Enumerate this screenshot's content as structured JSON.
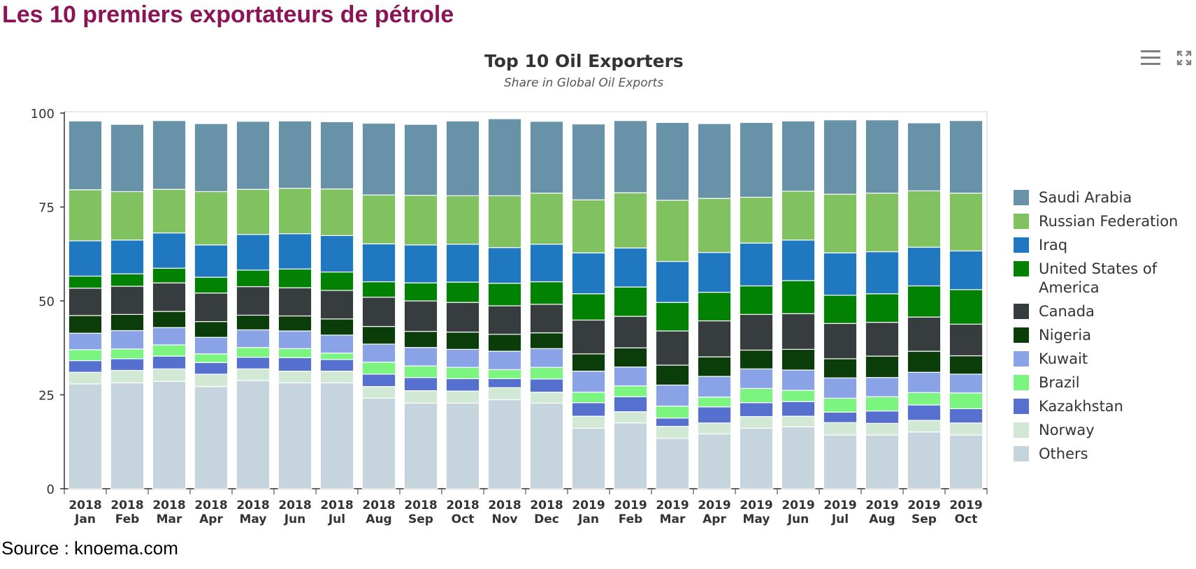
{
  "page_heading": "Les 10 premiers exportateurs de pétrole",
  "source_text": "Source : knoema.com",
  "icons": {
    "menu": "hamburger-menu-icon",
    "expand": "fullscreen-expand-icon"
  },
  "chart_data": {
    "type": "bar",
    "stacked": true,
    "title": "Top 10 Oil Exporters",
    "subtitle": "Share in Global Oil Exports",
    "xlabel": "",
    "ylabel": "",
    "ylim": [
      0,
      100
    ],
    "yticks": [
      0,
      25,
      50,
      75,
      100
    ],
    "grid": false,
    "legend_position": "right",
    "categories": [
      "2018 Jan",
      "2018 Feb",
      "2018 Mar",
      "2018 Apr",
      "2018 May",
      "2018 Jun",
      "2018 Jul",
      "2018 Aug",
      "2018 Sep",
      "2018 Oct",
      "2018 Nov",
      "2018 Dec",
      "2019 Jan",
      "2019 Feb",
      "2019 Mar",
      "2019 Apr",
      "2019 May",
      "2019 Jun",
      "2019 Jul",
      "2019 Aug",
      "2019 Sep",
      "2019 Oct"
    ],
    "series": [
      {
        "name": "Others",
        "color": "#c6d4de",
        "values": [
          27.9,
          28.2,
          28.6,
          27.2,
          28.8,
          28.2,
          28.2,
          24.1,
          22.8,
          22.8,
          23.7,
          22.8,
          16.1,
          17.5,
          13.4,
          14.6,
          16.1,
          16.5,
          14.3,
          14.3,
          15.1,
          14.3
        ]
      },
      {
        "name": "Norway",
        "color": "#d0e8d4",
        "values": [
          3.1,
          3.3,
          3.3,
          3.3,
          3.1,
          3.1,
          3.1,
          3.1,
          3.3,
          3.2,
          3.2,
          2.9,
          3.2,
          3.0,
          3.2,
          2.9,
          3.1,
          2.8,
          3.3,
          3.1,
          3.1,
          3.2
        ]
      },
      {
        "name": "Kazakhstan",
        "color": "#5670cf",
        "values": [
          3.1,
          3.1,
          3.4,
          3.1,
          3.1,
          3.6,
          3.1,
          3.3,
          3.5,
          3.3,
          2.4,
          3.5,
          3.6,
          4.0,
          2.2,
          4.3,
          3.7,
          3.9,
          2.8,
          3.3,
          4.1,
          3.8
        ]
      },
      {
        "name": "Brazil",
        "color": "#7cf480",
        "values": [
          2.9,
          2.6,
          3.0,
          2.3,
          2.6,
          2.4,
          1.7,
          3.2,
          3.1,
          3.0,
          2.4,
          3.1,
          2.8,
          2.9,
          3.2,
          2.6,
          3.8,
          3.0,
          3.7,
          3.8,
          3.3,
          4.2
        ]
      },
      {
        "name": "Kuwait",
        "color": "#8aa2e6",
        "values": [
          4.4,
          4.9,
          4.6,
          4.4,
          4.7,
          4.7,
          4.8,
          4.8,
          4.9,
          4.8,
          4.9,
          5.0,
          5.6,
          5.0,
          5.6,
          5.5,
          5.2,
          5.4,
          5.4,
          5.1,
          5.4,
          5.0
        ]
      },
      {
        "name": "Nigeria",
        "color": "#0a3d0a",
        "values": [
          4.7,
          4.3,
          4.3,
          4.2,
          3.9,
          4.0,
          4.3,
          4.7,
          4.3,
          4.6,
          4.5,
          4.2,
          4.6,
          5.1,
          5.3,
          5.2,
          5.0,
          5.5,
          5.1,
          5.7,
          5.6,
          4.9
        ]
      },
      {
        "name": "Canada",
        "color": "#373c3f",
        "values": [
          7.3,
          7.5,
          7.6,
          7.6,
          7.6,
          7.5,
          7.6,
          7.8,
          8.1,
          7.9,
          7.6,
          7.6,
          9.0,
          8.4,
          9.1,
          9.6,
          9.5,
          9.5,
          9.4,
          9.0,
          9.1,
          8.4
        ]
      },
      {
        "name": "United States of America",
        "color": "#028202",
        "values": [
          3.2,
          3.3,
          3.9,
          4.2,
          4.4,
          5.0,
          4.9,
          4.1,
          4.8,
          5.4,
          6.0,
          6.0,
          7.0,
          7.8,
          7.6,
          7.6,
          7.6,
          8.8,
          7.5,
          7.6,
          8.3,
          9.2
        ]
      },
      {
        "name": "Iraq",
        "color": "#1f78c0",
        "values": [
          9.4,
          9.0,
          9.4,
          8.6,
          9.5,
          9.4,
          9.7,
          10.1,
          10.1,
          10.1,
          9.5,
          10.0,
          10.9,
          10.4,
          10.9,
          10.6,
          11.4,
          10.8,
          11.3,
          11.2,
          10.3,
          10.3
        ]
      },
      {
        "name": "Russian Federation",
        "color": "#80c160",
        "values": [
          13.6,
          12.9,
          11.6,
          14.2,
          12.0,
          12.1,
          12.4,
          13.0,
          13.2,
          12.9,
          13.8,
          13.6,
          14.1,
          14.7,
          16.3,
          14.4,
          12.2,
          13.0,
          15.6,
          15.6,
          15.0,
          15.4
        ]
      },
      {
        "name": "Saudi Arabia",
        "color": "#6792a8",
        "values": [
          18.3,
          17.9,
          18.3,
          18.1,
          18.1,
          17.9,
          17.9,
          19.1,
          18.9,
          19.9,
          20.5,
          19.1,
          20.2,
          19.2,
          20.7,
          19.9,
          19.9,
          18.7,
          19.8,
          19.5,
          18.1,
          19.3
        ]
      }
    ]
  }
}
